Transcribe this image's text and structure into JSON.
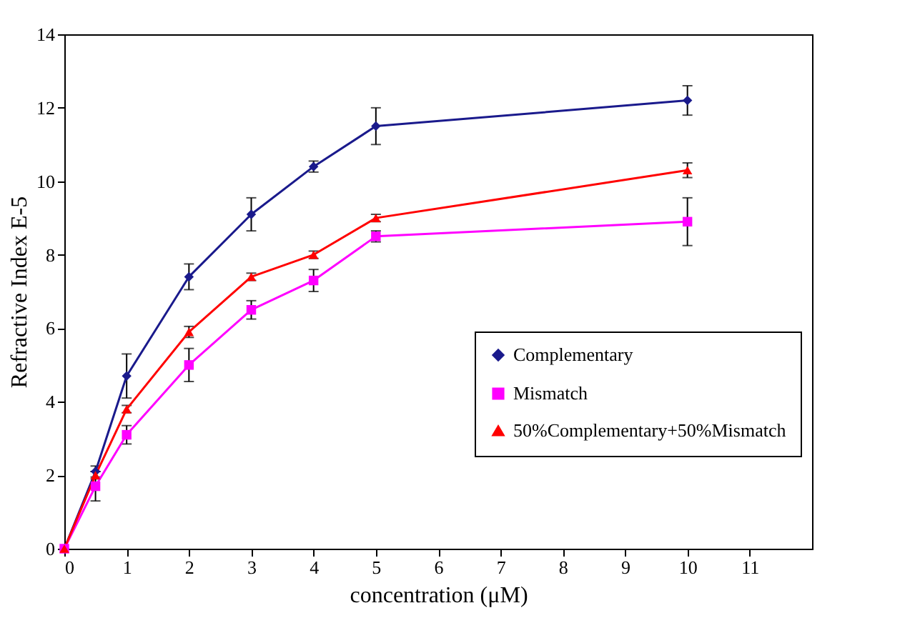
{
  "chart_data": {
    "type": "line",
    "xlabel": "concentration (μM)",
    "ylabel": "Refractive Index E-5",
    "x": [
      0,
      0.5,
      1,
      2,
      3,
      4,
      5,
      10
    ],
    "xlim": [
      0,
      12
    ],
    "xticks": [
      0,
      1,
      2,
      3,
      4,
      5,
      6,
      7,
      8,
      9,
      10,
      11
    ],
    "ylim": [
      0,
      14
    ],
    "yticks": [
      0,
      2,
      4,
      6,
      8,
      10,
      12,
      14
    ],
    "grid": false,
    "legend": "bottom right",
    "series": [
      {
        "name": "Complementary",
        "color": "#1a1a8c",
        "marker": "diamond",
        "values": [
          0,
          2.1,
          4.7,
          7.4,
          9.1,
          10.4,
          11.5,
          12.2
        ],
        "errors": [
          null,
          0.15,
          0.6,
          0.35,
          0.45,
          0.15,
          0.5,
          0.4
        ]
      },
      {
        "name": "Mismatch",
        "color": "#ff00ff",
        "marker": "square",
        "values": [
          0,
          1.7,
          3.1,
          5.0,
          6.5,
          7.3,
          8.5,
          8.9
        ],
        "errors": [
          null,
          0.4,
          0.25,
          0.45,
          0.25,
          0.3,
          0.15,
          0.65
        ]
      },
      {
        "name": "50%Complementary+50%Mismatch",
        "color": "#ff0000",
        "marker": "triangle",
        "values": [
          0,
          2.0,
          3.8,
          5.9,
          7.4,
          8.0,
          9.0,
          10.3
        ],
        "errors": [
          null,
          0.1,
          0.1,
          0.15,
          0.1,
          0.1,
          0.1,
          0.2
        ]
      }
    ]
  }
}
